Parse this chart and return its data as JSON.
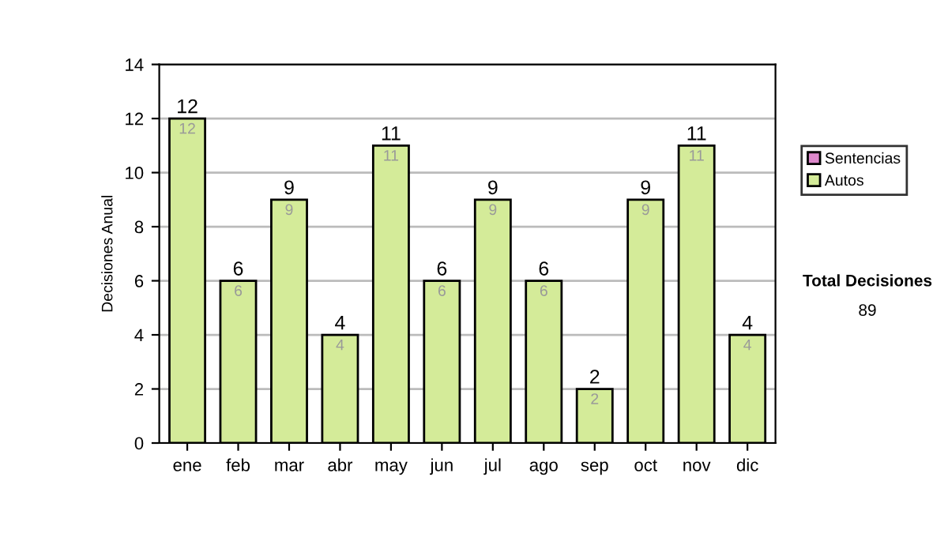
{
  "chart_data": {
    "type": "bar",
    "stacked": true,
    "ylabel": "Decisiones Anual",
    "categories": [
      "ene",
      "feb",
      "mar",
      "abr",
      "may",
      "jun",
      "jul",
      "ago",
      "sep",
      "oct",
      "nov",
      "dic"
    ],
    "series": [
      {
        "name": "Sentencias",
        "color": "#dd88cc",
        "values": [
          0,
          0,
          0,
          0,
          0,
          0,
          0,
          0,
          0,
          0,
          0,
          0
        ]
      },
      {
        "name": "Autos",
        "color": "#d4eb99",
        "values": [
          12,
          6,
          9,
          4,
          11,
          6,
          9,
          6,
          2,
          9,
          11,
          4
        ],
        "value_labels": [
          "12",
          "6",
          "9",
          "4",
          "11",
          "6",
          "9",
          "6",
          "2",
          "9",
          "11",
          "4"
        ]
      }
    ],
    "totals": [
      "12",
      "6",
      "9",
      "4",
      "11",
      "6",
      "9",
      "6",
      "2",
      "9",
      "11",
      "4"
    ],
    "ylim": [
      0,
      14
    ],
    "yticks": [
      0,
      2,
      4,
      6,
      8,
      10,
      12,
      14
    ],
    "grid": "y",
    "legend": "right",
    "annotations": [
      "Total Decisiones",
      "89"
    ]
  }
}
